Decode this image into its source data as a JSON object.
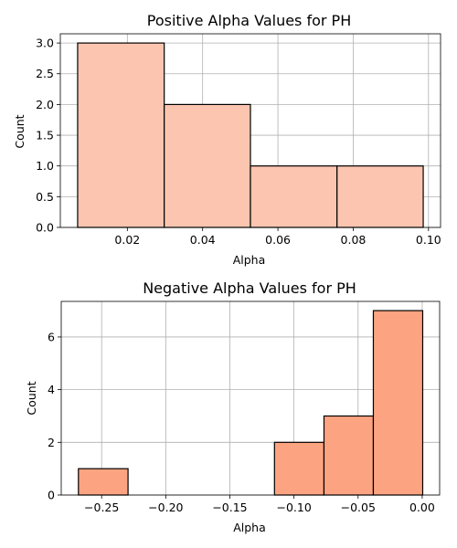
{
  "chart_data": [
    {
      "type": "histogram",
      "title": "Positive Alpha Values for PH",
      "xlabel": "Alpha",
      "ylabel": "Count",
      "bins": [
        {
          "x0": 0.0068,
          "x1": 0.0298,
          "count": 3
        },
        {
          "x0": 0.0298,
          "x1": 0.0527,
          "count": 2
        },
        {
          "x0": 0.0527,
          "x1": 0.0757,
          "count": 1
        },
        {
          "x0": 0.0757,
          "x1": 0.0986,
          "count": 1
        }
      ],
      "xlim": [
        0.0022,
        0.1032
      ],
      "ylim": [
        0,
        3.15
      ],
      "xticks": [
        0.02,
        0.04,
        0.06,
        0.08,
        0.1
      ],
      "xtick_labels": [
        "0.02",
        "0.04",
        "0.06",
        "0.08",
        "0.10"
      ],
      "yticks": [
        0,
        0.5,
        1.0,
        1.5,
        2.0,
        2.5,
        3.0
      ],
      "ytick_labels": [
        "0.0",
        "0.5",
        "1.0",
        "1.5",
        "2.0",
        "2.5",
        "3.0"
      ],
      "bar_color": "#fcc5b0",
      "edge_color": "#000000",
      "grid": true
    },
    {
      "type": "histogram",
      "title": "Negative Alpha Values for PH",
      "xlabel": "Alpha",
      "ylabel": "Count",
      "bins": [
        {
          "x0": -0.2681,
          "x1": -0.2294,
          "count": 1
        },
        {
          "x0": -0.2294,
          "x1": -0.193,
          "count": 0
        },
        {
          "x0": -0.193,
          "x1": -0.1541,
          "count": 0
        },
        {
          "x0": -0.1541,
          "x1": -0.1152,
          "count": 0
        },
        {
          "x0": -0.1152,
          "x1": -0.0766,
          "count": 2
        },
        {
          "x0": -0.0766,
          "x1": -0.0381,
          "count": 3
        },
        {
          "x0": -0.0381,
          "x1": 0.0004,
          "count": 7
        }
      ],
      "xlim": [
        -0.2815,
        0.0136
      ],
      "ylim": [
        0,
        7.35
      ],
      "xticks": [
        -0.25,
        -0.2,
        -0.15,
        -0.1,
        -0.05,
        0.0
      ],
      "xtick_labels": [
        "−0.25",
        "−0.20",
        "−0.15",
        "−0.10",
        "−0.05",
        "0.00"
      ],
      "yticks": [
        0,
        2,
        4,
        6
      ],
      "ytick_labels": [
        "0",
        "2",
        "4",
        "6"
      ],
      "bar_color": "#fca482",
      "edge_color": "#000000",
      "grid": true
    }
  ]
}
